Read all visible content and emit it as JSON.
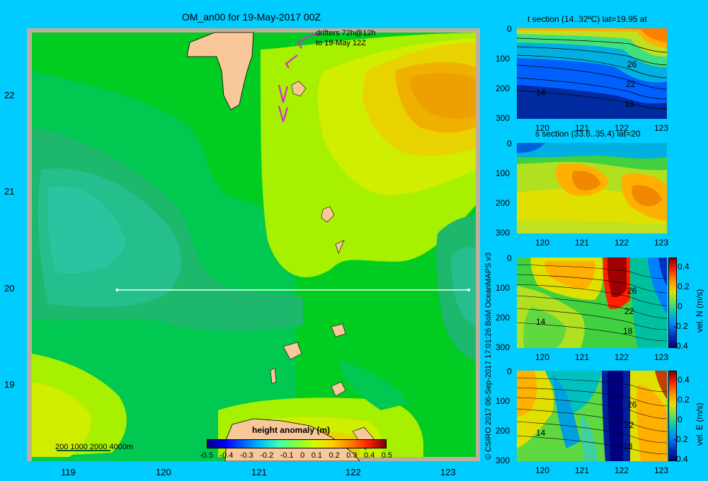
{
  "map": {
    "title": "OM_an00 for 19-May-2017 00Z",
    "drifter_line1": "drifters 72h@12h",
    "drifter_line2": "to 19-May 12Z",
    "lat_ticks": [
      "22",
      "21",
      "20",
      "19"
    ],
    "lon_ticks": [
      "119",
      "120",
      "121",
      "122",
      "123"
    ],
    "depth_legend": "200  1000  2000  4000m",
    "colorbar_title": "height anomaly (m)",
    "colorbar_ticks": [
      "-0.5",
      "-0.4",
      "-0.3",
      "-0.2",
      "-0.1",
      "0",
      "0.1",
      "0.2",
      "0.3",
      "0.4",
      "0.5"
    ],
    "section_line_lat": 20,
    "section_line_lon": [
      119.5,
      123.2
    ]
  },
  "credit": "© CSIRO 2017   06-Sep-2017 17:01:26 BoM OceanMAPS v3",
  "panels": [
    {
      "title": "t section (14..32ºC) lat=19.95 at",
      "depth_ticks": [
        "0",
        "100",
        "200",
        "300"
      ],
      "lon_ticks": [
        "120",
        "121",
        "122",
        "123"
      ],
      "contour_labels": [
        "26",
        "22",
        "18",
        "14"
      ],
      "colorbar": null
    },
    {
      "title": "s section (33.6..35.4) lat=20",
      "depth_ticks": [
        "0",
        "100",
        "200",
        "300"
      ],
      "lon_ticks": [
        "120",
        "121",
        "122",
        "123"
      ],
      "contour_labels": [],
      "colorbar": null
    },
    {
      "title": "",
      "depth_ticks": [
        "0",
        "100",
        "200",
        "300"
      ],
      "lon_ticks": [
        "120",
        "121",
        "122",
        "123"
      ],
      "contour_labels": [
        "26",
        "22",
        "18",
        "14"
      ],
      "colorbar": {
        "label": "vel. N  (m/s)",
        "ticks": [
          "0.4",
          "0.2",
          "0",
          "-0.2",
          "-0.4"
        ]
      }
    },
    {
      "title": "",
      "depth_ticks": [
        "0",
        "100",
        "200",
        "300"
      ],
      "lon_ticks": [
        "120",
        "121",
        "122",
        "123"
      ],
      "contour_labels": [
        "26",
        "22",
        "18",
        "14"
      ],
      "colorbar": {
        "label": "vel. E  (m/s)",
        "ticks": [
          "0.4",
          "0.2",
          "0",
          "-0.2",
          "-0.4"
        ]
      }
    }
  ],
  "colors": {
    "background": "#00ccff",
    "land": "#f9c89a",
    "shelf": "#bdb09a",
    "drifter": "#d030d0"
  }
}
